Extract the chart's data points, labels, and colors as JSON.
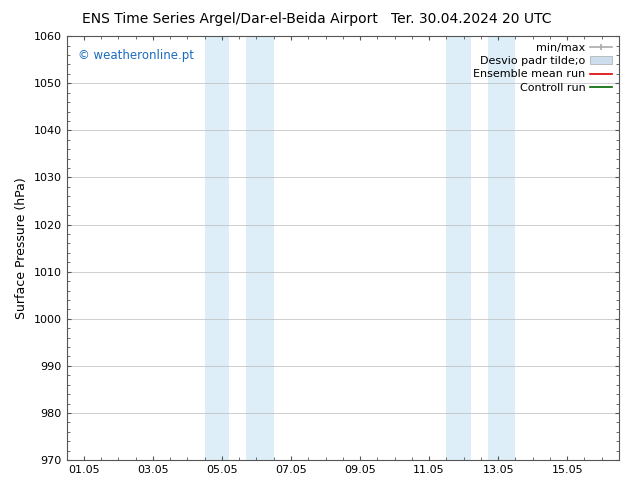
{
  "title_left": "ENS Time Series Argel/Dar-el-Beida Airport",
  "title_right": "Ter. 30.04.2024 20 UTC",
  "ylabel": "Surface Pressure (hPa)",
  "ylim": [
    970,
    1060
  ],
  "yticks": [
    970,
    980,
    990,
    1000,
    1010,
    1020,
    1030,
    1040,
    1050,
    1060
  ],
  "xtick_labels": [
    "01.05",
    "03.05",
    "05.05",
    "07.05",
    "09.05",
    "11.05",
    "13.05",
    "15.05"
  ],
  "xtick_positions": [
    0,
    2,
    4,
    6,
    8,
    10,
    12,
    14
  ],
  "xlim": [
    -0.5,
    15.5
  ],
  "shaded_regions": [
    {
      "x_start": 3.5,
      "x_end": 4.2,
      "color": "#ddeef8"
    },
    {
      "x_start": 4.7,
      "x_end": 5.5,
      "color": "#ddeef8"
    },
    {
      "x_start": 10.5,
      "x_end": 11.2,
      "color": "#ddeef8"
    },
    {
      "x_start": 11.7,
      "x_end": 12.5,
      "color": "#ddeef8"
    }
  ],
  "watermark_text": "© weatheronline.pt",
  "watermark_color": "#1a6bbf",
  "background_color": "#ffffff",
  "title_fontsize": 10,
  "tick_fontsize": 8,
  "ylabel_fontsize": 9,
  "grid_color": "#bbbbbb",
  "grid_lw": 0.5,
  "legend_fontsize": 8,
  "spine_color": "#555555",
  "minmax_color": "#aaaaaa",
  "desvio_color": "#ccddee",
  "ensemble_color": "#dd0000",
  "controll_color": "#006600"
}
